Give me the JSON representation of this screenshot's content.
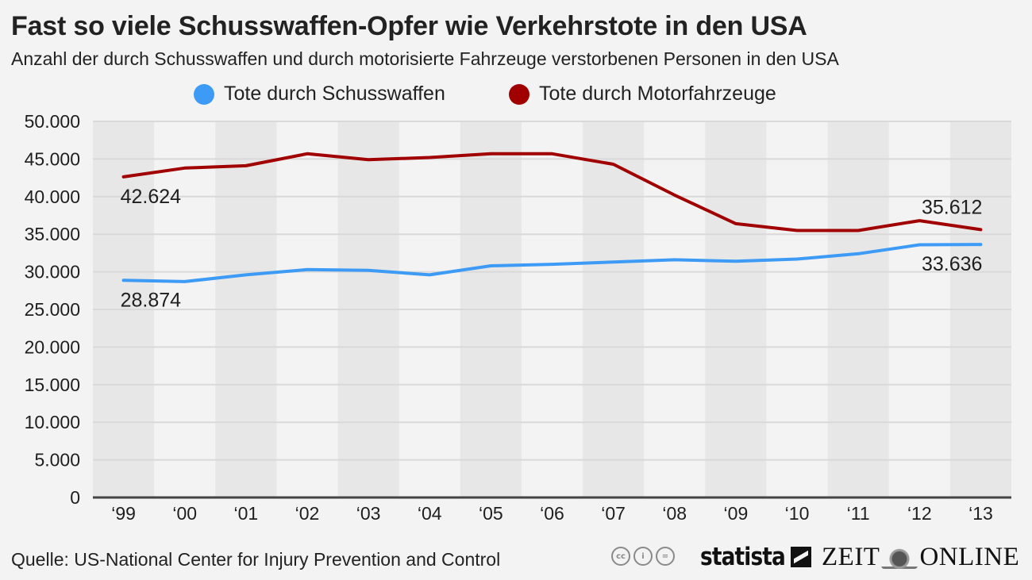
{
  "header": {
    "title": "Fast so viele Schusswaffen-Opfer wie Verkehrstote in den USA",
    "subtitle": "Anzahl der durch Schusswaffen und durch motorisierte Fahrzeuge verstorbenen Personen in den USA"
  },
  "legend": [
    {
      "label": "Tote durch Schusswaffen",
      "color": "#3d9bf5"
    },
    {
      "label": "Tote durch Motorfahrzeuge",
      "color": "#a10000"
    }
  ],
  "chart_data": {
    "type": "line",
    "title": "Fast so viele Schusswaffen-Opfer wie Verkehrstote in den USA",
    "subtitle": "Anzahl der durch Schusswaffen und durch motorisierte Fahrzeuge verstorbenen Personen in den USA",
    "xlabel": "",
    "ylabel": "",
    "categories": [
      "‘99",
      "‘00",
      "‘01",
      "‘02",
      "‘03",
      "‘04",
      "‘05",
      "‘06",
      "‘07",
      "‘08",
      "‘09",
      "‘10",
      "‘11",
      "‘12",
      "‘13"
    ],
    "ylim": [
      0,
      50000
    ],
    "yticks": [
      0,
      5000,
      10000,
      15000,
      20000,
      25000,
      30000,
      35000,
      40000,
      45000,
      50000
    ],
    "ytick_labels": [
      "0",
      "5.000",
      "10.000",
      "15.000",
      "20.000",
      "25.000",
      "30.000",
      "35.000",
      "40.000",
      "45.000",
      "50.000"
    ],
    "grid": true,
    "legend_position": "top-center",
    "series": [
      {
        "name": "Tote durch Schusswaffen",
        "color": "#3d9bf5",
        "values": [
          28874,
          28700,
          29600,
          30300,
          30200,
          29600,
          30800,
          31000,
          31300,
          31600,
          31400,
          31700,
          32400,
          33600,
          33636
        ]
      },
      {
        "name": "Tote durch Motorfahrzeuge",
        "color": "#a10000",
        "values": [
          42624,
          43800,
          44100,
          45700,
          44900,
          45200,
          45700,
          45700,
          44300,
          40200,
          36400,
          35500,
          35500,
          36800,
          35612
        ]
      }
    ],
    "annotations": [
      {
        "series": 1,
        "index": 0,
        "text": "42.624",
        "position": "below"
      },
      {
        "series": 0,
        "index": 0,
        "text": "28.874",
        "position": "below"
      },
      {
        "series": 1,
        "index": 14,
        "text": "35.612",
        "position": "above"
      },
      {
        "series": 0,
        "index": 14,
        "text": "33.636",
        "position": "below"
      }
    ]
  },
  "footer": {
    "source": "Quelle: US-National Center for Injury Prevention and Control",
    "license_icons": [
      "cc-icon",
      "by-icon",
      "nd-icon"
    ],
    "license_glyphs": [
      "cc",
      "i",
      "="
    ],
    "statista_label": "statista",
    "zeit_left": "ZEIT",
    "zeit_right": "ONLINE"
  }
}
